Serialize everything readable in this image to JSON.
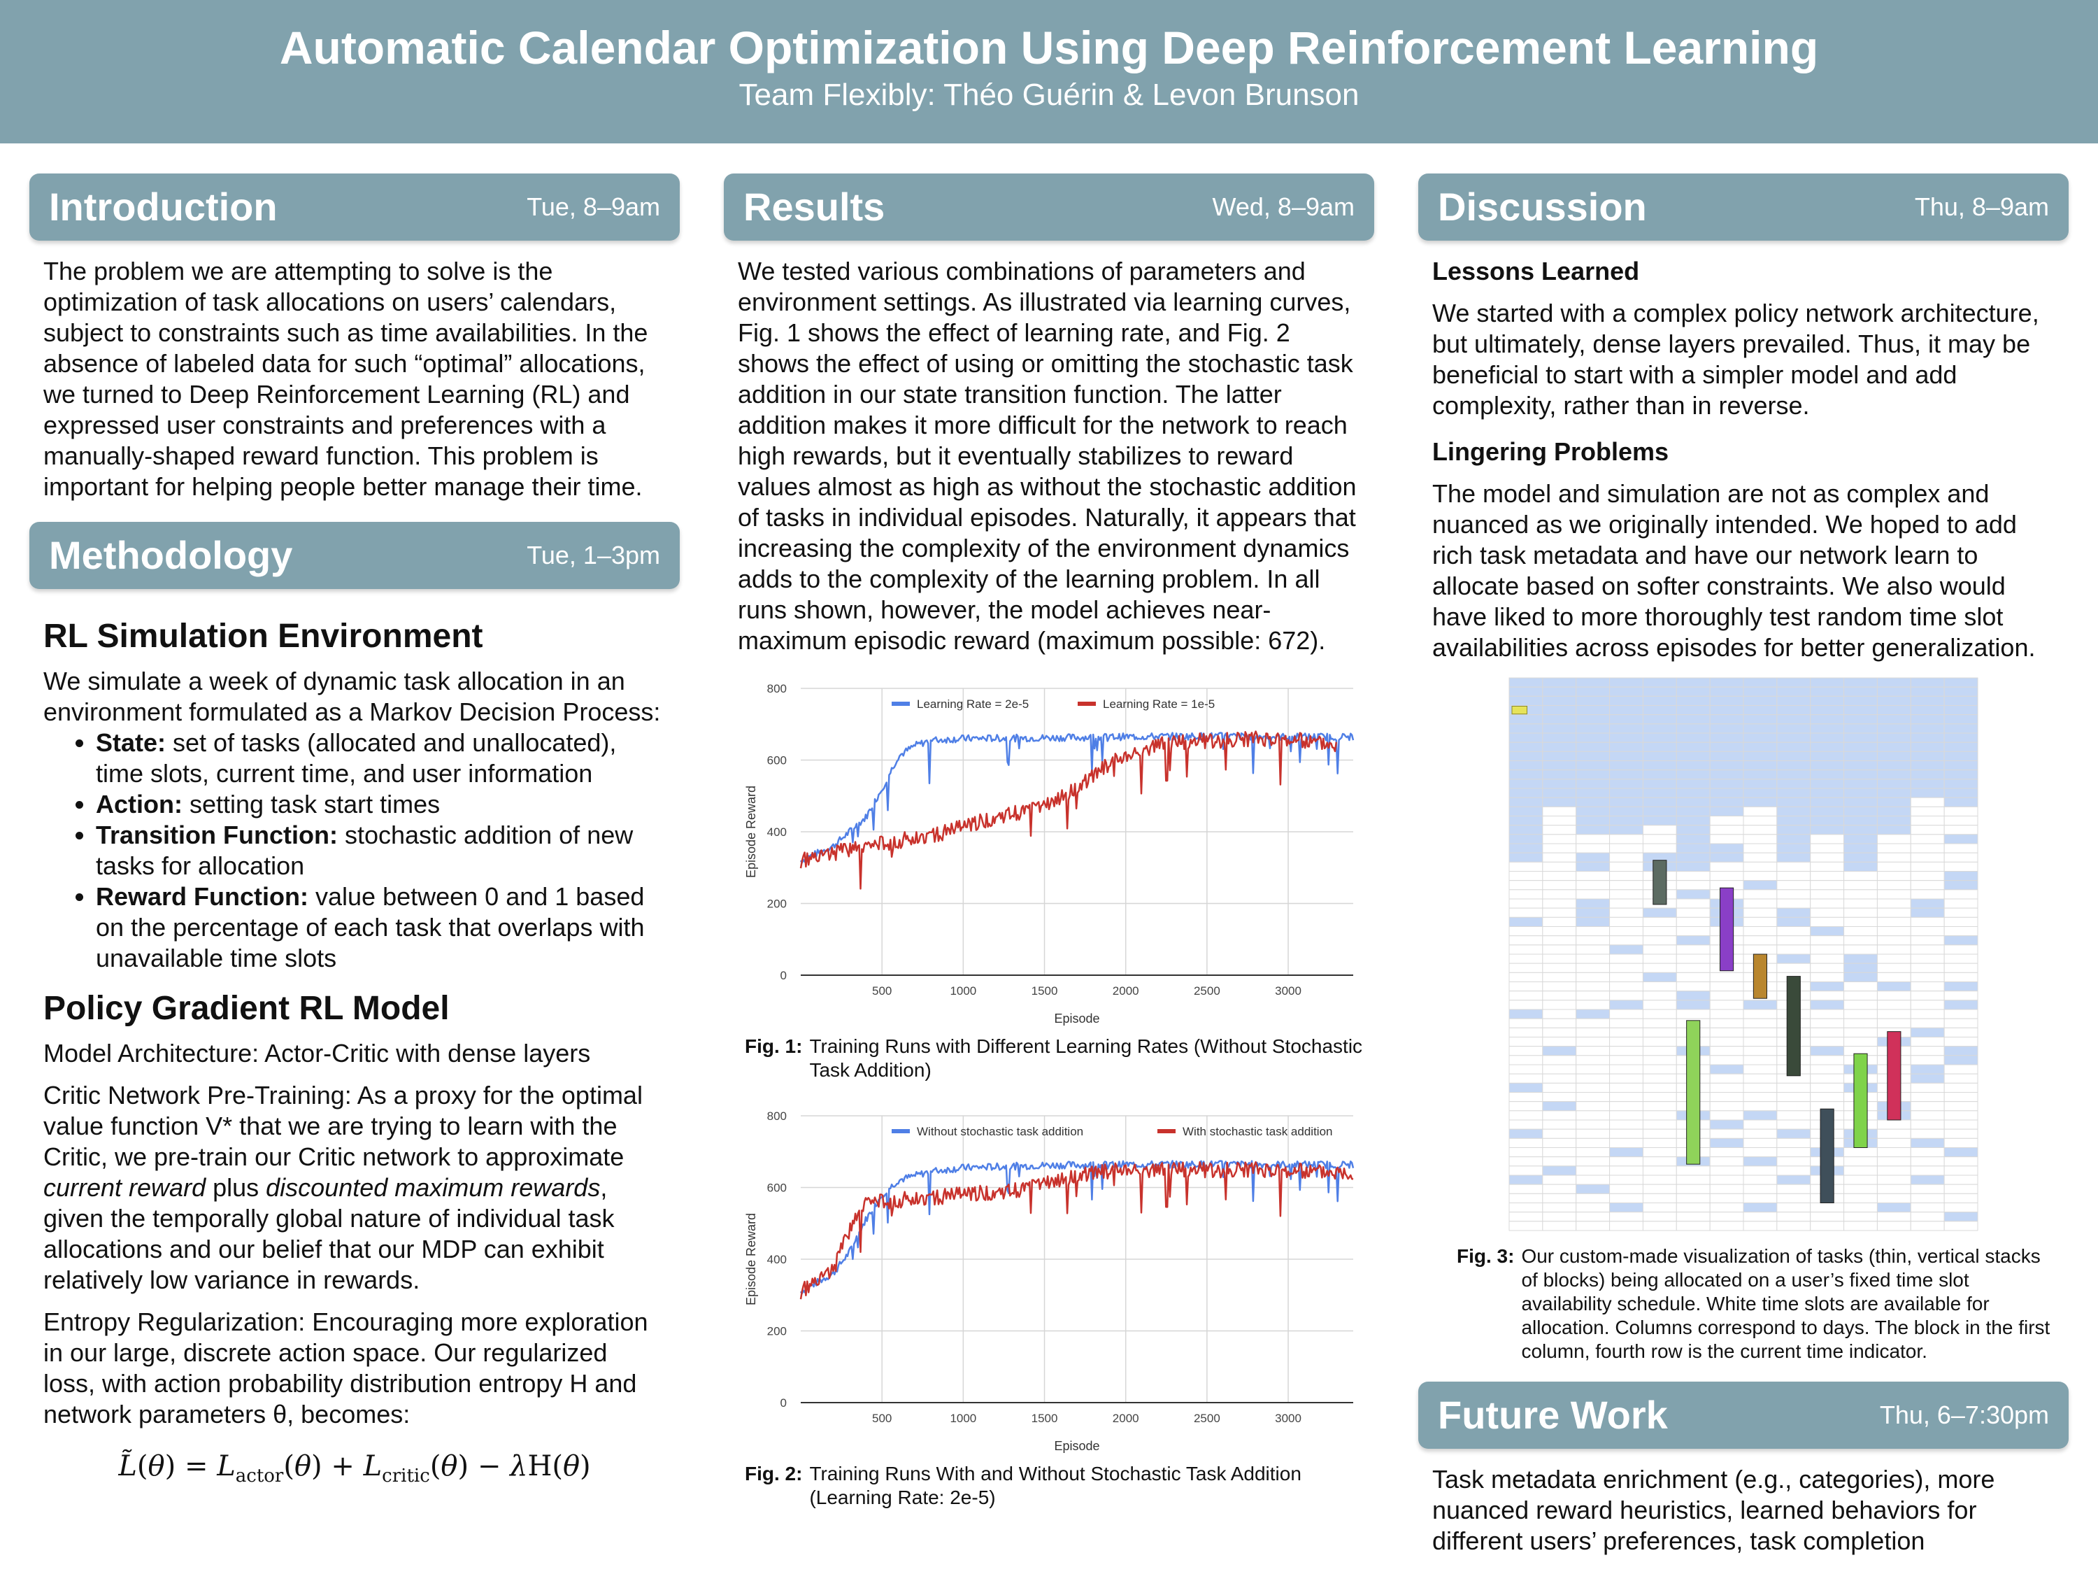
{
  "header": {
    "title": "Automatic Calendar Optimization Using Deep Reinforcement Learning",
    "subtitle": "Team Flexibly: Théo Guérin & Levon Brunson"
  },
  "colors": {
    "banner": "#81a2ad",
    "blue_series": "#4f7fe6",
    "red_series": "#c8322c",
    "calendar_blue": "#c4d7f5"
  },
  "introduction": {
    "heading": "Introduction",
    "time": "Tue, 8–9am",
    "text": "The problem we are attempting to solve is the optimization of task allocations on users’ calendars, subject to constraints such as time availabilities. In the absence of labeled data for such “optimal” allocations, we turned to Deep Reinforcement Learning (RL) and expressed user constraints and preferences with a manually-shaped reward function. This problem is important for helping people better manage their time."
  },
  "methodology": {
    "heading": "Methodology",
    "time": "Tue, 1–3pm",
    "sub1": "RL Simulation Environment",
    "sim_text": "We simulate a week of dynamic task allocation in an environment formulated as a Markov Decision Process:",
    "bullets": [
      {
        "label": "State:",
        "text": " set of tasks (allocated and unallocated), time slots, current time, and user information"
      },
      {
        "label": "Action:",
        "text": " setting task start times"
      },
      {
        "label": "Transition Function:",
        "text": " stochastic addition of new tasks for allocation"
      },
      {
        "label": "Reward Function:",
        "text": " value between 0 and 1 based on the percentage of each task that overlaps with unavailable time slots"
      }
    ],
    "sub2": "Policy Gradient RL Model",
    "arch": "Model Architecture: Actor-Critic with dense layers",
    "critic_a": "Critic Network Pre-Training: As a proxy for the optimal value function V* that we are trying to learn with the Critic, we pre-train our Critic network to approximate ",
    "critic_em1": "current reward",
    "critic_b": " plus ",
    "critic_em2": "discounted maximum rewards",
    "critic_c": ", given the temporally global nature of individual task allocations and our belief that our MDP can exhibit relatively low variance in rewards.",
    "entropy": "Entropy Regularization: Encouraging more exploration in our large, discrete action space. Our regularized loss, with action probability distribution entropy H and network parameters θ, becomes:"
  },
  "results": {
    "heading": "Results",
    "time": "Wed, 8–9am",
    "text": "We tested various combinations of parameters and environment settings. As illustrated via learning curves, Fig. 1 shows the effect of learning rate, and Fig. 2 shows the effect of using or omitting the stochastic task addition in our state transition function. The latter addition makes it more difficult for the network to reach high rewards, but it eventually stabilizes to reward values almost as high as without the stochastic addition of tasks in individual episodes. Naturally, it appears that increasing the complexity of the environment dynamics adds to the complexity of the learning problem. In all runs shown, however, the model achieves near-maximum episodic reward (maximum possible: 672).",
    "fig1_label": "Fig. 1:",
    "fig1_caption": "Training Runs with Different Learning Rates (Without Stochastic Task Addition)",
    "fig2_label": "Fig. 2:",
    "fig2_caption": "Training Runs With and Without Stochastic Task Addition (Learning Rate: 2e-5)"
  },
  "chart_data": [
    {
      "type": "line",
      "xlabel": "Episode",
      "ylabel": "Episode Reward",
      "xlim": [
        0,
        3400
      ],
      "ylim": [
        0,
        800
      ],
      "xticks": [
        500,
        1000,
        1500,
        2000,
        2500,
        3000
      ],
      "yticks": [
        0,
        200,
        400,
        600,
        800
      ],
      "legend_position": "top-center",
      "series": [
        {
          "name": "Learning Rate = 2e-5",
          "color": "#4f7fe6",
          "x": [
            0,
            200,
            400,
            500,
            600,
            700,
            800,
            1000,
            1500,
            2000,
            2500,
            3000,
            3400
          ],
          "y": [
            320,
            360,
            440,
            520,
            610,
            640,
            655,
            660,
            662,
            665,
            667,
            665,
            665
          ]
        },
        {
          "name": "Learning Rate = 1e-5",
          "color": "#c8322c",
          "x": [
            0,
            300,
            600,
            900,
            1200,
            1500,
            1700,
            1900,
            2000,
            2200,
            2500,
            2800,
            3000,
            3300
          ],
          "y": [
            320,
            350,
            375,
            400,
            440,
            470,
            520,
            590,
            610,
            645,
            655,
            658,
            660,
            645
          ]
        }
      ]
    },
    {
      "type": "line",
      "xlabel": "Episode",
      "ylabel": "Episode Reward",
      "xlim": [
        0,
        3400
      ],
      "ylim": [
        0,
        800
      ],
      "xticks": [
        500,
        1000,
        1500,
        2000,
        2500,
        3000
      ],
      "yticks": [
        0,
        200,
        400,
        600,
        800
      ],
      "legend_position": "top-center",
      "series": [
        {
          "name": "Without stochastic task addition",
          "color": "#4f7fe6",
          "x": [
            0,
            200,
            300,
            400,
            500,
            600,
            800,
            1000,
            1500,
            2000,
            2500,
            3000,
            3400
          ],
          "y": [
            310,
            360,
            420,
            510,
            580,
            620,
            645,
            655,
            662,
            664,
            665,
            664,
            664
          ]
        },
        {
          "name": "With stochastic task addition",
          "color": "#c8322c",
          "x": [
            0,
            200,
            300,
            400,
            500,
            700,
            1000,
            1300,
            1500,
            1800,
            2000,
            2500,
            3000,
            3400
          ],
          "y": [
            310,
            370,
            480,
            560,
            560,
            570,
            580,
            590,
            610,
            640,
            650,
            650,
            648,
            645
          ]
        }
      ]
    }
  ],
  "equation": "L̃(θ) = L_actor(θ) + L_critic(θ) − λH(θ)",
  "discussion": {
    "heading": "Discussion",
    "time": "Thu, 8–9am",
    "lessons_title": "Lessons Learned",
    "lessons_text": "We started with a complex policy network architecture, but ultimately, dense layers prevailed. Thus, it may be beneficial to start with a simpler model and add complexity, rather than in reverse.",
    "problems_title": "Lingering Problems",
    "problems_text": "The model and simulation are not as complex and nuanced as we originally intended. We hoped to add rich task metadata and have our network learn to allocate based on softer constraints. We also would have liked to more thoroughly test random time slot availabilities across episodes for better generalization.",
    "fig3_label": "Fig. 3:",
    "fig3_caption": "Our custom-made visualization of tasks (thin, vertical stacks of blocks) being allocated on a user’s fixed time slot availability schedule. White time slots are available for allocation. Columns correspond to days. The block in the first column, fourth row is the current time indicator."
  },
  "calendar": {
    "columns": 14,
    "tasks": [
      {
        "col": 4,
        "start": 0.33,
        "end": 0.41,
        "color": "#5c6b62"
      },
      {
        "col": 6,
        "start": 0.38,
        "end": 0.53,
        "color": "#8a3fc7"
      },
      {
        "col": 5,
        "start": 0.62,
        "end": 0.88,
        "color": "#8fd35a"
      },
      {
        "col": 7,
        "start": 0.5,
        "end": 0.58,
        "color": "#b9862e"
      },
      {
        "col": 8,
        "start": 0.54,
        "end": 0.72,
        "color": "#3a4a3a"
      },
      {
        "col": 9,
        "start": 0.78,
        "end": 0.95,
        "color": "#3f4f5a"
      },
      {
        "col": 10,
        "start": 0.68,
        "end": 0.85,
        "color": "#7fd34a"
      },
      {
        "col": 11,
        "start": 0.64,
        "end": 0.8,
        "color": "#d0315a"
      }
    ]
  },
  "future": {
    "heading": "Future Work",
    "time": "Thu, 6–7:30pm",
    "text": "Task metadata enrichment (e.g., categories), more nuanced reward heuristics, learned behaviors for different users’ preferences, task completion"
  }
}
